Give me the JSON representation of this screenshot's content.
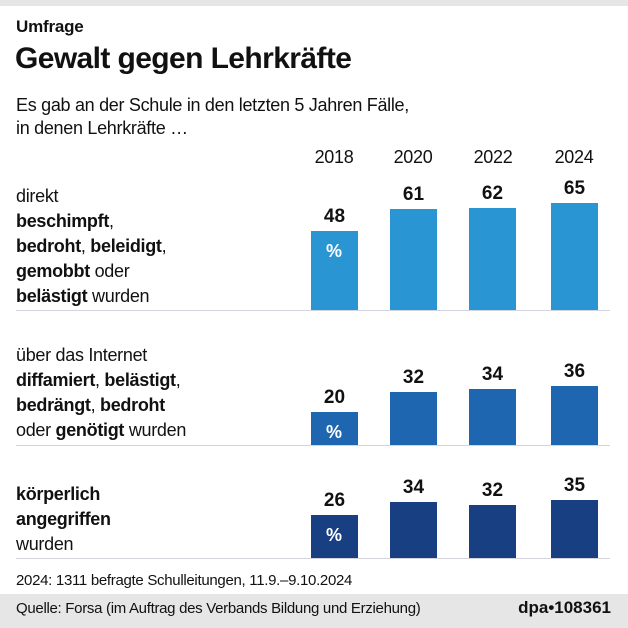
{
  "header": {
    "kicker": "Umfrage",
    "title": "Gewalt gegen Lehrkräfte",
    "subtitle_line1": "Es gab an der Schule in den letzten 5 Jahren Fälle,",
    "subtitle_line2": "in denen Lehrkräfte …"
  },
  "colors": {
    "group1": "#2a95d3",
    "group2": "#1f66b1",
    "group3": "#173f82"
  },
  "unit_label": "%",
  "chart_data": {
    "type": "bar",
    "title": "Gewalt gegen Lehrkräfte",
    "subtitle": "Es gab an der Schule in den letzten 5 Jahren Fälle, in denen Lehrkräfte …",
    "categories": [
      "2018",
      "2020",
      "2022",
      "2024"
    ],
    "unit": "%",
    "series": [
      {
        "name": "direkt beschimpft, bedroht, beleidigt, gemobbt oder belästigt wurden",
        "label_parts": [
          [
            {
              "t": "direkt",
              "b": false
            }
          ],
          [
            {
              "t": "beschimpft",
              "b": true
            },
            {
              "t": ",",
              "b": false
            }
          ],
          [
            {
              "t": "bedroht",
              "b": true
            },
            {
              "t": ", ",
              "b": false
            },
            {
              "t": "beleidigt",
              "b": true
            },
            {
              "t": ",",
              "b": false
            }
          ],
          [
            {
              "t": "gemobbt",
              "b": true
            },
            {
              "t": " oder",
              "b": false
            }
          ],
          [
            {
              "t": "belästigt",
              "b": true
            },
            {
              "t": " wurden",
              "b": false
            }
          ]
        ],
        "values": [
          48,
          61,
          62,
          65
        ]
      },
      {
        "name": "über das Internet diffamiert, belästigt, bedrängt, bedroht oder genötigt wurden",
        "label_parts": [
          [
            {
              "t": "über das Internet",
              "b": false
            }
          ],
          [
            {
              "t": "diffamiert",
              "b": true
            },
            {
              "t": ", ",
              "b": false
            },
            {
              "t": "belästigt",
              "b": true
            },
            {
              "t": ",",
              "b": false
            }
          ],
          [
            {
              "t": "bedrängt",
              "b": true
            },
            {
              "t": ", ",
              "b": false
            },
            {
              "t": "bedroht",
              "b": true
            }
          ],
          [
            {
              "t": "oder ",
              "b": false
            },
            {
              "t": "genötigt",
              "b": true
            },
            {
              "t": " wurden",
              "b": false
            }
          ]
        ],
        "values": [
          20,
          32,
          34,
          36
        ]
      },
      {
        "name": "körperlich angegriffen wurden",
        "label_parts": [
          [
            {
              "t": "körperlich",
              "b": true
            }
          ],
          [
            {
              "t": "angegriffen",
              "b": true
            }
          ],
          [
            {
              "t": "wurden",
              "b": false
            }
          ]
        ],
        "values": [
          26,
          34,
          32,
          35
        ]
      }
    ],
    "ylim": [
      0,
      100
    ],
    "grid": false,
    "legend": "none"
  },
  "footer": {
    "note": "2024: 1311 befragte Schulleitungen, 11.9.–9.10.2024",
    "source": "Quelle: Forsa (im Auftrag des Verbands Bildung und Erziehung)",
    "credit": "dpa•108361"
  }
}
